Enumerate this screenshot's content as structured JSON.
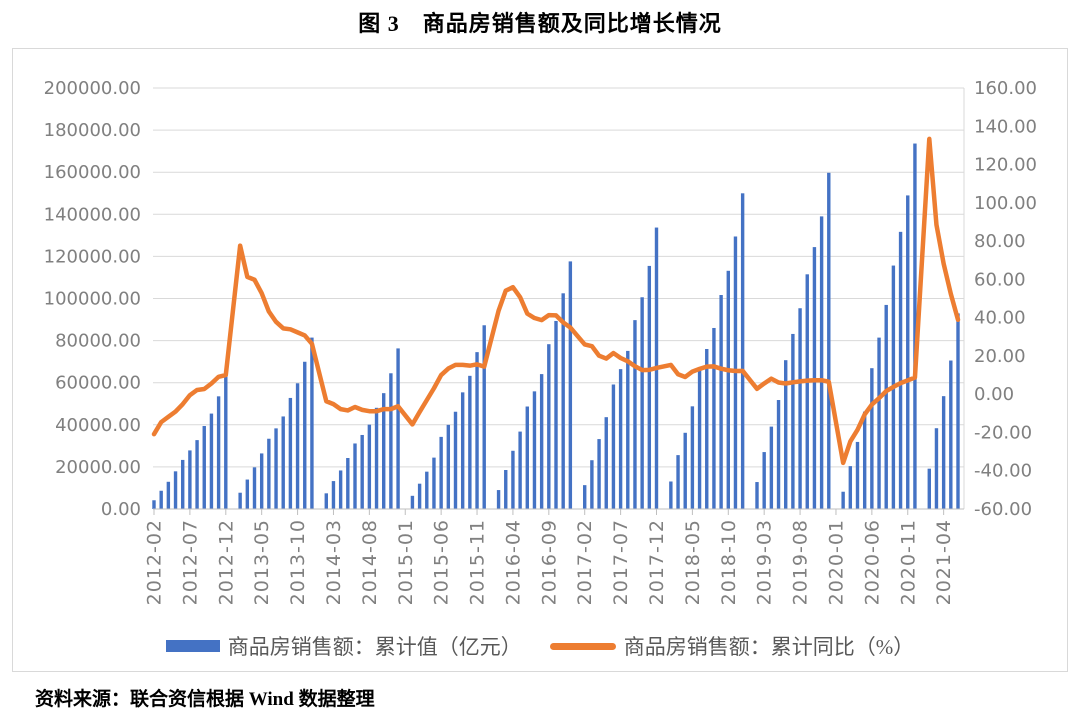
{
  "title": "图 3　商品房销售额及同比增长情况",
  "source_note": "资料来源：联合资信根据 Wind 数据整理",
  "legend": [
    {
      "label": "商品房销售额：累计值（亿元）",
      "type": "bar",
      "color": "#4472C4"
    },
    {
      "label": "商品房销售额：累计同比（%）",
      "type": "line",
      "color": "#ED7D31"
    }
  ],
  "colors": {
    "bar_blue": "#4472C4",
    "line_orange": "#ED7D31",
    "gridline": "#D9D9D9",
    "axis_line": "#BFBFBF",
    "tick_label": "#808080",
    "legend_text": "#595959",
    "chart_border": "#D9D9D9",
    "title_text": "#000000"
  },
  "chart_data": {
    "type": "combo-bar-line",
    "title": "图 3　商品房销售额及同比增长情况",
    "grid": true,
    "legend_position": "bottom",
    "left_axis": {
      "min": 0,
      "max": 200000,
      "step": 20000,
      "label_format": "0.00"
    },
    "right_axis": {
      "min": -60,
      "max": 160,
      "step": 20,
      "label_format": "0.00"
    },
    "x_axis": {
      "start": "2012-02",
      "end": "2021-06",
      "tick_labels": [
        "2012-02",
        "2012-07",
        "2012-12",
        "2013-05",
        "2013-10",
        "2014-03",
        "2014-08",
        "2015-01",
        "2015-06",
        "2015-11",
        "2016-04",
        "2016-09",
        "2017-02",
        "2017-07",
        "2017-12",
        "2018-05",
        "2018-10",
        "2019-03",
        "2019-08",
        "2020-01",
        "2020-06",
        "2020-11",
        "2021-04"
      ]
    },
    "x_months": [
      "2012-02",
      "2012-03",
      "2012-04",
      "2012-05",
      "2012-06",
      "2012-07",
      "2012-08",
      "2012-09",
      "2012-10",
      "2012-11",
      "2012-12",
      "2013-02",
      "2013-03",
      "2013-04",
      "2013-05",
      "2013-06",
      "2013-07",
      "2013-08",
      "2013-09",
      "2013-10",
      "2013-11",
      "2013-12",
      "2014-02",
      "2014-03",
      "2014-04",
      "2014-05",
      "2014-06",
      "2014-07",
      "2014-08",
      "2014-09",
      "2014-10",
      "2014-11",
      "2014-12",
      "2015-02",
      "2015-03",
      "2015-04",
      "2015-05",
      "2015-06",
      "2015-07",
      "2015-08",
      "2015-09",
      "2015-10",
      "2015-11",
      "2015-12",
      "2016-02",
      "2016-03",
      "2016-04",
      "2016-05",
      "2016-06",
      "2016-07",
      "2016-08",
      "2016-09",
      "2016-10",
      "2016-11",
      "2016-12",
      "2017-02",
      "2017-03",
      "2017-04",
      "2017-05",
      "2017-06",
      "2017-07",
      "2017-08",
      "2017-09",
      "2017-10",
      "2017-11",
      "2017-12",
      "2018-02",
      "2018-03",
      "2018-04",
      "2018-05",
      "2018-06",
      "2018-07",
      "2018-08",
      "2018-09",
      "2018-10",
      "2018-11",
      "2018-12",
      "2019-02",
      "2019-03",
      "2019-04",
      "2019-05",
      "2019-06",
      "2019-07",
      "2019-08",
      "2019-09",
      "2019-10",
      "2019-11",
      "2019-12",
      "2020-02",
      "2020-03",
      "2020-04",
      "2020-05",
      "2020-06",
      "2020-07",
      "2020-08",
      "2020-09",
      "2020-10",
      "2020-11",
      "2020-12",
      "2021-02",
      "2021-03",
      "2021-04",
      "2021-05",
      "2021-06"
    ],
    "series": [
      {
        "name": "商品房销售额：累计值（亿元）",
        "type": "bar",
        "axis": "left",
        "color": "#4472C4",
        "values": [
          4145,
          8672,
          12925,
          17896,
          23314,
          27836,
          32729,
          39419,
          45330,
          53526,
          64456,
          7736,
          13992,
          19794,
          26399,
          33376,
          38306,
          43966,
          52762,
          59718,
          69946,
          81428,
          7443,
          13263,
          18307,
          24230,
          31133,
          35169,
          40078,
          48076,
          55036,
          64481,
          76292,
          6264,
          12023,
          17739,
          24409,
          34259,
          39975,
          46203,
          55410,
          63265,
          74523,
          87281,
          8996,
          18524,
          27656,
          36775,
          48682,
          55885,
          64084,
          78294,
          89330,
          102469,
          117627,
          11335,
          23177,
          33214,
          43626,
          59149,
          66447,
          75106,
          89725,
          100586,
          115483,
          133701,
          13069,
          25597,
          36203,
          48774,
          66957,
          76015,
          85996,
          101658,
          113159,
          129457,
          149973,
          12803,
          27039,
          39141,
          51773,
          70698,
          83162,
          95373,
          111491,
          124417,
          139006,
          159725,
          8203,
          20365,
          31863,
          46269,
          66895,
          81422,
          96943,
          115647,
          131665,
          148969,
          173613,
          19151,
          38378,
          53609,
          70534,
          92931
        ]
      },
      {
        "name": "商品房销售额：累计同比（%）",
        "type": "line",
        "axis": "right",
        "color": "#ED7D31",
        "values": [
          -20.9,
          -14.6,
          -11.8,
          -9.1,
          -5.2,
          -0.5,
          2.2,
          2.7,
          5.6,
          9.1,
          10.0,
          77.6,
          61.3,
          59.8,
          52.8,
          43.2,
          37.8,
          34.4,
          33.9,
          32.3,
          30.7,
          26.3,
          -3.7,
          -5.2,
          -7.8,
          -8.5,
          -6.7,
          -8.2,
          -8.9,
          -8.9,
          -7.8,
          -7.8,
          -6.3,
          -15.8,
          -9.3,
          -3.1,
          3.1,
          10.0,
          13.4,
          15.3,
          15.3,
          14.9,
          15.6,
          14.4,
          43.6,
          54.1,
          55.9,
          50.7,
          42.1,
          39.8,
          38.7,
          41.3,
          41.2,
          37.5,
          34.8,
          26.0,
          25.1,
          20.1,
          18.6,
          21.5,
          18.9,
          17.2,
          14.6,
          12.6,
          12.7,
          13.7,
          15.3,
          10.4,
          9.0,
          11.8,
          13.2,
          14.4,
          14.5,
          13.3,
          12.5,
          12.1,
          12.2,
          2.8,
          5.6,
          8.1,
          6.1,
          5.6,
          6.2,
          6.7,
          7.1,
          7.3,
          7.3,
          6.5,
          -35.9,
          -24.7,
          -18.6,
          -10.6,
          -5.4,
          -2.1,
          1.6,
          3.8,
          5.8,
          7.2,
          8.7,
          133.4,
          88.5,
          68.2,
          52.4,
          38.9
        ]
      }
    ]
  }
}
